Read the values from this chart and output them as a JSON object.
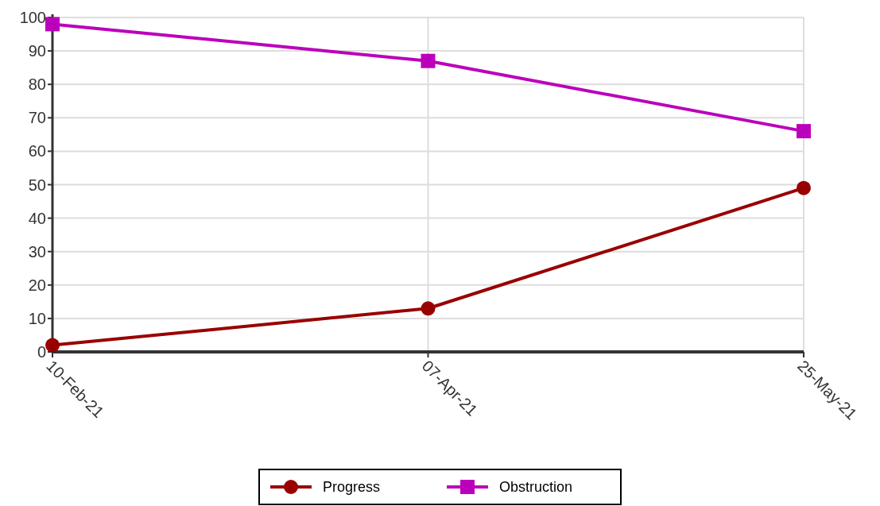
{
  "chart_data": {
    "type": "line",
    "categories": [
      "10-Feb-21",
      "07-Apr-21",
      "25-May-21"
    ],
    "series": [
      {
        "name": "Progress",
        "color": "#990000",
        "marker": "circle",
        "values": [
          2,
          13,
          49
        ]
      },
      {
        "name": "Obstruction",
        "color": "#bb00bb",
        "marker": "square",
        "values": [
          98,
          87,
          66
        ]
      }
    ],
    "ylim": [
      0,
      100
    ],
    "yticks": [
      0,
      10,
      20,
      30,
      40,
      50,
      60,
      70,
      80,
      90,
      100
    ],
    "grid": true,
    "legend": "bottom"
  }
}
